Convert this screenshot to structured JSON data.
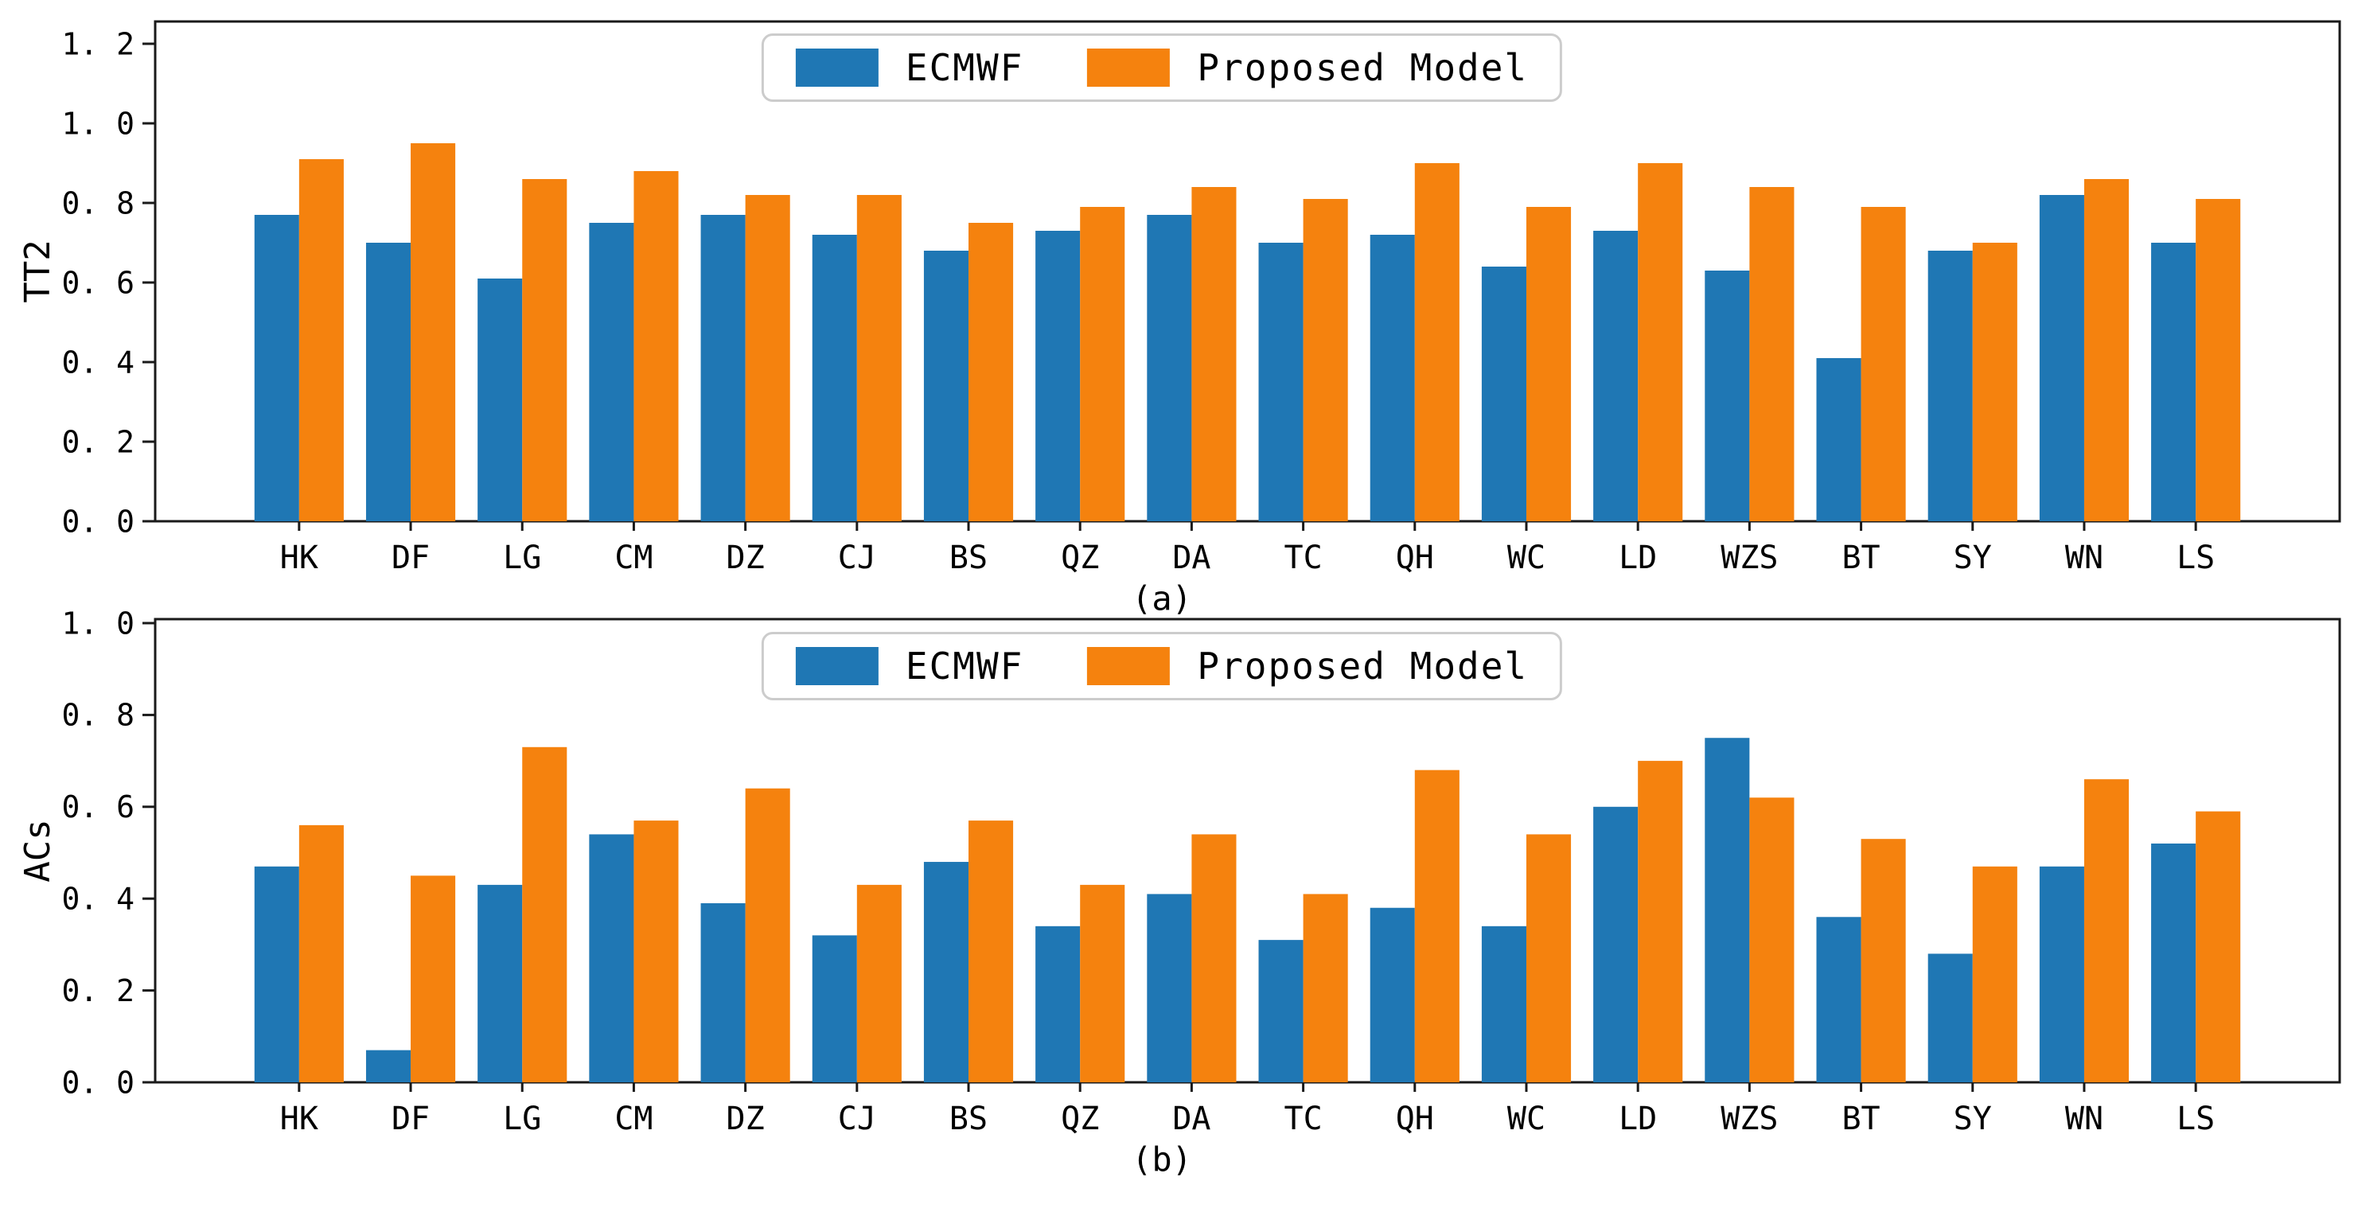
{
  "colors": {
    "ecmwf": "#1f77b4",
    "proposed": "#f5820e",
    "spine": "#1a1a1a",
    "text": "#000000",
    "legend_border": "#cccccc"
  },
  "legend": {
    "items": [
      {
        "label": "ECMWF",
        "color_key": "ecmwf"
      },
      {
        "label": "Proposed Model",
        "color_key": "proposed"
      }
    ],
    "position": "top-center"
  },
  "chart_data": [
    {
      "type": "bar",
      "panel": "a",
      "caption": "(a)",
      "title": "",
      "xlabel": "",
      "ylabel": "TT2",
      "ylim": [
        0,
        1.2
      ],
      "yticks": [
        0.0,
        0.2,
        0.4,
        0.6,
        0.8,
        1.0,
        1.2
      ],
      "ytick_labels": [
        "0. 0",
        "0. 2",
        "0. 4",
        "0. 6",
        "0. 8",
        "1. 0",
        "1. 2"
      ],
      "grid": false,
      "legend_position": "upper center",
      "categories": [
        "HK",
        "DF",
        "LG",
        "CM",
        "DZ",
        "CJ",
        "BS",
        "QZ",
        "DA",
        "TC",
        "QH",
        "WC",
        "LD",
        "WZS",
        "BT",
        "SY",
        "WN",
        "LS"
      ],
      "series": [
        {
          "name": "ECMWF",
          "values": [
            0.77,
            0.7,
            0.61,
            0.75,
            0.77,
            0.72,
            0.68,
            0.73,
            0.77,
            0.7,
            0.72,
            0.64,
            0.73,
            0.63,
            0.41,
            0.68,
            0.82,
            0.7
          ]
        },
        {
          "name": "Proposed Model",
          "values": [
            0.91,
            0.95,
            0.86,
            0.88,
            0.82,
            0.82,
            0.75,
            0.79,
            0.84,
            0.81,
            0.9,
            0.79,
            0.9,
            0.84,
            0.79,
            0.7,
            0.86,
            0.81
          ]
        }
      ]
    },
    {
      "type": "bar",
      "panel": "b",
      "caption": "(b)",
      "title": "",
      "xlabel": "",
      "ylabel": "ACs",
      "ylim": [
        0,
        1.0
      ],
      "yticks": [
        0.0,
        0.2,
        0.4,
        0.6,
        0.8,
        1.0
      ],
      "ytick_labels": [
        "0. 0",
        "0. 2",
        "0. 4",
        "0. 6",
        "0. 8",
        "1. 0"
      ],
      "grid": false,
      "legend_position": "upper center",
      "categories": [
        "HK",
        "DF",
        "LG",
        "CM",
        "DZ",
        "CJ",
        "BS",
        "QZ",
        "DA",
        "TC",
        "QH",
        "WC",
        "LD",
        "WZS",
        "BT",
        "SY",
        "WN",
        "LS"
      ],
      "series": [
        {
          "name": "ECMWF",
          "values": [
            0.47,
            0.07,
            0.43,
            0.54,
            0.39,
            0.32,
            0.48,
            0.34,
            0.41,
            0.31,
            0.38,
            0.34,
            0.6,
            0.75,
            0.36,
            0.28,
            0.47,
            0.52
          ]
        },
        {
          "name": "Proposed Model",
          "values": [
            0.56,
            0.45,
            0.73,
            0.57,
            0.64,
            0.43,
            0.57,
            0.43,
            0.54,
            0.41,
            0.68,
            0.54,
            0.7,
            0.62,
            0.53,
            0.47,
            0.66,
            0.59
          ]
        }
      ]
    }
  ]
}
